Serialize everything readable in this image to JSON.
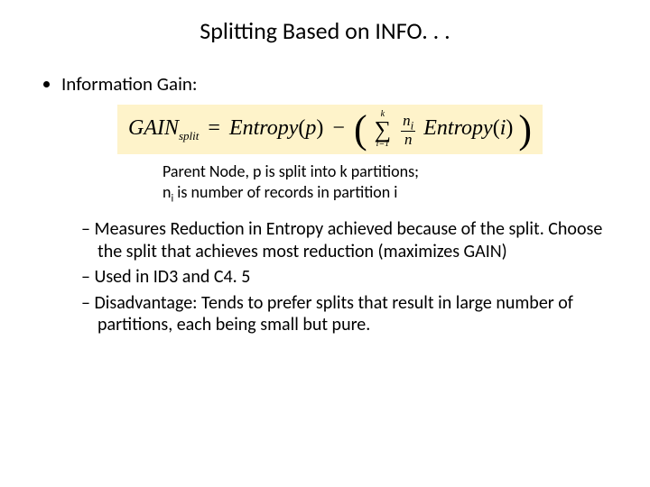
{
  "title": "Splitting Based on INFO. . .",
  "bullet_label": "Information Gain:",
  "formula": {
    "lhs_name": "GAIN",
    "lhs_sub": "split",
    "eq": "=",
    "entropy_name": "Entropy",
    "parent_arg": "p",
    "minus": "−",
    "sum_upper": "k",
    "sum_lower": "i=1",
    "frac_num_sym": "n",
    "frac_num_sub": "i",
    "frac_den": "n",
    "child_arg": "i",
    "background_color": "#fef3ca"
  },
  "caption": {
    "line1": "Parent Node, p is split into k partitions;",
    "line2_pre": "n",
    "line2_sub": "i",
    "line2_post": " is number of records in partition i"
  },
  "subpoints": [
    "Measures Reduction in Entropy achieved because of the split. Choose the split that achieves most reduction (maximizes GAIN)",
    "Used in ID3 and C4. 5",
    "Disadvantage: Tends to prefer splits that result in large number of partitions, each being small but pure."
  ],
  "colors": {
    "text": "#000000",
    "background": "#ffffff"
  }
}
